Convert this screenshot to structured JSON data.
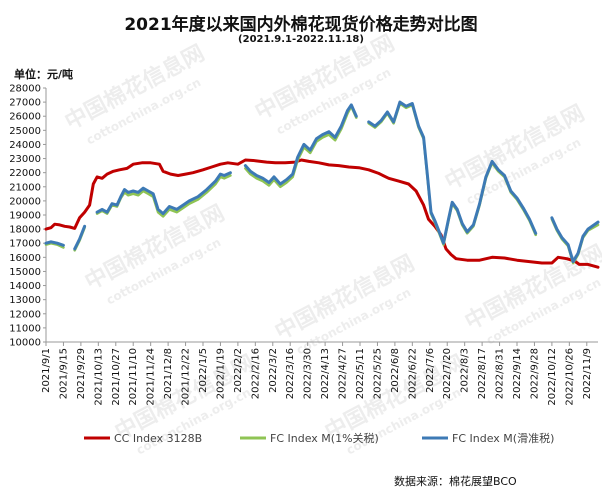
{
  "chart_data": {
    "type": "line",
    "title": "2021年度以来国内外棉花现货价格走势对比图",
    "subtitle": "(2021.9.1-2022.11.18)",
    "ylabel": "单位：元/吨",
    "source": "数据来源：棉花展望BCO",
    "ylim": [
      10000,
      28000
    ],
    "ystep": 1000,
    "x_start": "2021/9/1",
    "x_end": "2022/11/18",
    "x_ticks": [
      "2021/9/1",
      "2021/9/15",
      "2021/9/29",
      "2021/10/13",
      "2021/10/27",
      "2021/11/10",
      "2021/11/24",
      "2021/12/8",
      "2021/12/22",
      "2022/1/5",
      "2022/1/19",
      "2022/2/2",
      "2022/2/16",
      "2022/3/2",
      "2022/3/16",
      "2022/3/30",
      "2022/4/13",
      "2022/4/27",
      "2022/5/11",
      "2022/5/25",
      "2022/6/8",
      "2022/6/22",
      "2022/7/6",
      "2022/7/20",
      "2022/8/3",
      "2022/8/17",
      "2022/8/31",
      "2022/9/14",
      "2022/9/28",
      "2022/10/12",
      "2022/10/26",
      "2022/11/9"
    ],
    "legend_position": "bottom",
    "series": [
      {
        "name": "CC Index 3128B",
        "color": "#c00000",
        "points": [
          [
            "2021/9/1",
            18000
          ],
          [
            "2021/9/5",
            18100
          ],
          [
            "2021/9/8",
            18350
          ],
          [
            "2021/9/12",
            18300
          ],
          [
            "2021/9/16",
            18200
          ],
          [
            "2021/9/20",
            18150
          ],
          [
            "2021/9/24",
            18050
          ],
          [
            "2021/9/28",
            18800
          ],
          [
            "2021/10/2",
            19200
          ],
          [
            "2021/10/6",
            19700
          ],
          [
            "2021/10/9",
            21200
          ],
          [
            "2021/10/12",
            21700
          ],
          [
            "2021/10/16",
            21600
          ],
          [
            "2021/10/20",
            21900
          ],
          [
            "2021/10/25",
            22100
          ],
          [
            "2021/10/30",
            22200
          ],
          [
            "2021/11/5",
            22300
          ],
          [
            "2021/11/10",
            22600
          ],
          [
            "2021/11/17",
            22700
          ],
          [
            "2021/11/24",
            22700
          ],
          [
            "2021/12/1",
            22600
          ],
          [
            "2021/12/4",
            22100
          ],
          [
            "2021/12/10",
            21900
          ],
          [
            "2021/12/16",
            21800
          ],
          [
            "2021/12/22",
            21900
          ],
          [
            "2021/12/28",
            22000
          ],
          [
            "2022/1/5",
            22200
          ],
          [
            "2022/1/12",
            22400
          ],
          [
            "2022/1/19",
            22600
          ],
          [
            "2022/1/25",
            22700
          ],
          [
            "2022/2/2",
            22600
          ],
          [
            "2022/2/8",
            22900
          ],
          [
            "2022/2/16",
            22850
          ],
          [
            "2022/2/25",
            22750
          ],
          [
            "2022/3/4",
            22700
          ],
          [
            "2022/3/12",
            22700
          ],
          [
            "2022/3/20",
            22750
          ],
          [
            "2022/3/25",
            22900
          ],
          [
            "2022/3/31",
            22800
          ],
          [
            "2022/4/8",
            22700
          ],
          [
            "2022/4/16",
            22550
          ],
          [
            "2022/4/24",
            22500
          ],
          [
            "2022/5/2",
            22400
          ],
          [
            "2022/5/10",
            22350
          ],
          [
            "2022/5/18",
            22200
          ],
          [
            "2022/5/26",
            21950
          ],
          [
            "2022/6/3",
            21600
          ],
          [
            "2022/6/11",
            21400
          ],
          [
            "2022/6/19",
            21200
          ],
          [
            "2022/6/25",
            20700
          ],
          [
            "2022/7/1",
            19700
          ],
          [
            "2022/7/5",
            18700
          ],
          [
            "2022/7/10",
            18200
          ],
          [
            "2022/7/15",
            17600
          ],
          [
            "2022/7/19",
            16600
          ],
          [
            "2022/7/23",
            16200
          ],
          [
            "2022/7/27",
            15900
          ],
          [
            "2022/8/5",
            15800
          ],
          [
            "2022/8/15",
            15800
          ],
          [
            "2022/8/25",
            16000
          ],
          [
            "2022/9/4",
            15950
          ],
          [
            "2022/9/14",
            15800
          ],
          [
            "2022/9/24",
            15700
          ],
          [
            "2022/10/4",
            15600
          ],
          [
            "2022/10/12",
            15600
          ],
          [
            "2022/10/17",
            16000
          ],
          [
            "2022/10/24",
            15900
          ],
          [
            "2022/10/30",
            15750
          ],
          [
            "2022/11/3",
            15500
          ],
          [
            "2022/11/10",
            15500
          ],
          [
            "2022/11/18",
            15300
          ]
        ]
      },
      {
        "name": "FC Index M(1%关税)",
        "color": "#8fc454",
        "points": [
          [
            "2021/9/1",
            16900
          ],
          [
            "2021/9/5",
            17000
          ],
          [
            "2021/9/10",
            16900
          ],
          [
            "2021/9/15",
            16700
          ],
          [
            "2021/9/19",
            null
          ],
          [
            "2021/9/24",
            16500
          ],
          [
            "2021/9/28",
            17200
          ],
          [
            "2021/10/2",
            18100
          ],
          [
            "2021/10/6",
            null
          ],
          [
            "2021/10/12",
            19100
          ],
          [
            "2021/10/16",
            19300
          ],
          [
            "2021/10/20",
            19100
          ],
          [
            "2021/10/24",
            19700
          ],
          [
            "2021/10/28",
            19600
          ],
          [
            "2021/10/31",
            20200
          ],
          [
            "2021/11/3",
            20600
          ],
          [
            "2021/11/6",
            20400
          ],
          [
            "2021/11/10",
            20500
          ],
          [
            "2021/11/14",
            20400
          ],
          [
            "2021/11/18",
            20700
          ],
          [
            "2021/11/22",
            20500
          ],
          [
            "2021/11/26",
            20300
          ],
          [
            "2021/11/30",
            19200
          ],
          [
            "2021/12/4",
            18900
          ],
          [
            "2021/12/9",
            19400
          ],
          [
            "2021/12/15",
            19200
          ],
          [
            "2021/12/20",
            19500
          ],
          [
            "2021/12/25",
            19800
          ],
          [
            "2022/1/1",
            20100
          ],
          [
            "2022/1/8",
            20600
          ],
          [
            "2022/1/15",
            21200
          ],
          [
            "2022/1/19",
            21700
          ],
          [
            "2022/1/22",
            21600
          ],
          [
            "2022/1/27",
            21800
          ],
          [
            "2022/1/31",
            null
          ],
          [
            "2022/2/8",
            22300
          ],
          [
            "2022/2/12",
            21900
          ],
          [
            "2022/2/17",
            21600
          ],
          [
            "2022/2/22",
            21400
          ],
          [
            "2022/2/27",
            21100
          ],
          [
            "2022/3/3",
            21500
          ],
          [
            "2022/3/8",
            21000
          ],
          [
            "2022/3/13",
            21300
          ],
          [
            "2022/3/18",
            21700
          ],
          [
            "2022/3/22",
            22900
          ],
          [
            "2022/3/27",
            23800
          ],
          [
            "2022/4/1",
            23400
          ],
          [
            "2022/4/6",
            24200
          ],
          [
            "2022/4/11",
            24500
          ],
          [
            "2022/4/16",
            24700
          ],
          [
            "2022/4/21",
            24300
          ],
          [
            "2022/4/26",
            25100
          ],
          [
            "2022/5/1",
            26200
          ],
          [
            "2022/5/4",
            26700
          ],
          [
            "2022/5/8",
            25900
          ],
          [
            "2022/5/11",
            null
          ],
          [
            "2022/5/18",
            25500
          ],
          [
            "2022/5/23",
            25200
          ],
          [
            "2022/5/28",
            25600
          ],
          [
            "2022/6/2",
            26200
          ],
          [
            "2022/6/7",
            25500
          ],
          [
            "2022/6/12",
            26900
          ],
          [
            "2022/6/17",
            26600
          ],
          [
            "2022/6/22",
            26800
          ],
          [
            "2022/6/27",
            25200
          ],
          [
            "2022/7/1",
            24400
          ],
          [
            "2022/7/4",
            21800
          ],
          [
            "2022/7/7",
            19100
          ],
          [
            "2022/7/10",
            18500
          ],
          [
            "2022/7/14",
            17600
          ],
          [
            "2022/7/17",
            16900
          ],
          [
            "2022/7/21",
            18600
          ],
          [
            "2022/7/24",
            19800
          ],
          [
            "2022/7/28",
            19300
          ],
          [
            "2022/8/1",
            18300
          ],
          [
            "2022/8/5",
            17700
          ],
          [
            "2022/8/10",
            18200
          ],
          [
            "2022/8/15",
            19700
          ],
          [
            "2022/8/20",
            21600
          ],
          [
            "2022/8/25",
            22700
          ],
          [
            "2022/8/30",
            22100
          ],
          [
            "2022/9/4",
            21700
          ],
          [
            "2022/9/9",
            20600
          ],
          [
            "2022/9/14",
            20100
          ],
          [
            "2022/9/19",
            19400
          ],
          [
            "2022/9/24",
            18600
          ],
          [
            "2022/9/29",
            17600
          ],
          [
            "2022/10/3",
            null
          ],
          [
            "2022/10/12",
            18700
          ],
          [
            "2022/10/16",
            17900
          ],
          [
            "2022/10/20",
            17300
          ],
          [
            "2022/10/25",
            16800
          ],
          [
            "2022/10/29",
            15600
          ],
          [
            "2022/11/2",
            16200
          ],
          [
            "2022/11/6",
            17400
          ],
          [
            "2022/11/10",
            17900
          ],
          [
            "2022/11/18",
            18300
          ]
        ]
      },
      {
        "name": "FC Index M(滑准税)",
        "color": "#3d7ab5",
        "points": [
          [
            "2021/9/1",
            17000
          ],
          [
            "2021/9/5",
            17100
          ],
          [
            "2021/9/10",
            17000
          ],
          [
            "2021/9/15",
            16850
          ],
          [
            "2021/9/19",
            null
          ],
          [
            "2021/9/24",
            16600
          ],
          [
            "2021/9/28",
            17300
          ],
          [
            "2021/10/2",
            18200
          ],
          [
            "2021/10/6",
            null
          ],
          [
            "2021/10/12",
            19200
          ],
          [
            "2021/10/16",
            19400
          ],
          [
            "2021/10/20",
            19200
          ],
          [
            "2021/10/24",
            19800
          ],
          [
            "2021/10/28",
            19700
          ],
          [
            "2021/10/31",
            20300
          ],
          [
            "2021/11/3",
            20800
          ],
          [
            "2021/11/6",
            20600
          ],
          [
            "2021/11/10",
            20700
          ],
          [
            "2021/11/14",
            20600
          ],
          [
            "2021/11/18",
            20900
          ],
          [
            "2021/11/22",
            20700
          ],
          [
            "2021/11/26",
            20500
          ],
          [
            "2021/11/30",
            19400
          ],
          [
            "2021/12/4",
            19100
          ],
          [
            "2021/12/9",
            19600
          ],
          [
            "2021/12/15",
            19400
          ],
          [
            "2021/12/20",
            19700
          ],
          [
            "2021/12/25",
            20000
          ],
          [
            "2022/1/1",
            20300
          ],
          [
            "2022/1/8",
            20800
          ],
          [
            "2022/1/15",
            21400
          ],
          [
            "2022/1/19",
            21900
          ],
          [
            "2022/1/22",
            21800
          ],
          [
            "2022/1/27",
            22000
          ],
          [
            "2022/1/31",
            null
          ],
          [
            "2022/2/8",
            22500
          ],
          [
            "2022/2/12",
            22100
          ],
          [
            "2022/2/17",
            21800
          ],
          [
            "2022/2/22",
            21600
          ],
          [
            "2022/2/27",
            21300
          ],
          [
            "2022/3/3",
            21700
          ],
          [
            "2022/3/8",
            21200
          ],
          [
            "2022/3/13",
            21500
          ],
          [
            "2022/3/18",
            21900
          ],
          [
            "2022/3/22",
            23100
          ],
          [
            "2022/3/27",
            24000
          ],
          [
            "2022/4/1",
            23600
          ],
          [
            "2022/4/6",
            24400
          ],
          [
            "2022/4/11",
            24700
          ],
          [
            "2022/4/16",
            24900
          ],
          [
            "2022/4/21",
            24500
          ],
          [
            "2022/4/26",
            25300
          ],
          [
            "2022/5/1",
            26400
          ],
          [
            "2022/5/4",
            26800
          ],
          [
            "2022/5/8",
            26000
          ],
          [
            "2022/5/11",
            null
          ],
          [
            "2022/5/18",
            25600
          ],
          [
            "2022/5/23",
            25300
          ],
          [
            "2022/5/28",
            25700
          ],
          [
            "2022/6/2",
            26300
          ],
          [
            "2022/6/7",
            25600
          ],
          [
            "2022/6/12",
            27000
          ],
          [
            "2022/6/17",
            26700
          ],
          [
            "2022/6/22",
            26900
          ],
          [
            "2022/6/27",
            25300
          ],
          [
            "2022/7/1",
            24500
          ],
          [
            "2022/7/4",
            21900
          ],
          [
            "2022/7/7",
            19200
          ],
          [
            "2022/7/10",
            18600
          ],
          [
            "2022/7/14",
            17700
          ],
          [
            "2022/7/17",
            17000
          ],
          [
            "2022/7/21",
            18700
          ],
          [
            "2022/7/24",
            19900
          ],
          [
            "2022/7/28",
            19400
          ],
          [
            "2022/8/1",
            18400
          ],
          [
            "2022/8/5",
            17800
          ],
          [
            "2022/8/10",
            18300
          ],
          [
            "2022/8/15",
            19800
          ],
          [
            "2022/8/20",
            21700
          ],
          [
            "2022/8/25",
            22800
          ],
          [
            "2022/8/30",
            22200
          ],
          [
            "2022/9/4",
            21800
          ],
          [
            "2022/9/9",
            20700
          ],
          [
            "2022/9/14",
            20200
          ],
          [
            "2022/9/19",
            19500
          ],
          [
            "2022/9/24",
            18700
          ],
          [
            "2022/9/29",
            17700
          ],
          [
            "2022/10/3",
            null
          ],
          [
            "2022/10/12",
            18800
          ],
          [
            "2022/10/16",
            18000
          ],
          [
            "2022/10/20",
            17400
          ],
          [
            "2022/10/25",
            16900
          ],
          [
            "2022/10/29",
            15700
          ],
          [
            "2022/11/2",
            16300
          ],
          [
            "2022/11/6",
            17500
          ],
          [
            "2022/11/10",
            18000
          ],
          [
            "2022/11/18",
            18500
          ]
        ]
      }
    ]
  },
  "watermarks": [
    "中国棉花信息网",
    "cottonchina.org.cn"
  ]
}
